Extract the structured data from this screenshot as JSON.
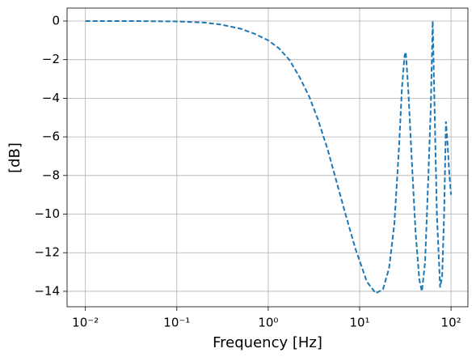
{
  "chart_data": {
    "type": "line",
    "xlabel": "Frequency [Hz]",
    "ylabel": "[dB]",
    "xscale": "log",
    "grid": true,
    "xlim": [
      0.0063,
      153
    ],
    "ylim": [
      -14.8,
      0.67
    ],
    "xticks": [
      {
        "value": 0.01,
        "label": "10⁻²"
      },
      {
        "value": 0.1,
        "label": "10⁻¹"
      },
      {
        "value": 1,
        "label": "10⁰"
      },
      {
        "value": 10,
        "label": "10¹"
      },
      {
        "value": 100,
        "label": "10²"
      }
    ],
    "yticks": [
      0,
      {
        "value": -2,
        "label": "−2"
      },
      {
        "value": -4,
        "label": "−4"
      },
      {
        "value": -6,
        "label": "−6"
      },
      {
        "value": -8,
        "label": "−8"
      },
      {
        "value": -10,
        "label": "−10"
      },
      {
        "value": -12,
        "label": "−12"
      },
      {
        "value": -14,
        "label": "−14"
      }
    ],
    "x": [
      0.01,
      0.03,
      0.1,
      0.2,
      0.3,
      0.5,
      0.7,
      1,
      1.3,
      1.7,
      2.2,
      2.8,
      3.5,
      4.5,
      5.5,
      7,
      9,
      12,
      15,
      18,
      21,
      24,
      27,
      29,
      31,
      32,
      34,
      37,
      41,
      45,
      48,
      52,
      56,
      60,
      63,
      65,
      70,
      76,
      80,
      84,
      88,
      92,
      96,
      100
    ],
    "series": [
      {
        "color": "#1f77b4",
        "linestyle": "dashed",
        "values": [
          0,
          0,
          -0.02,
          -0.08,
          -0.18,
          -0.4,
          -0.65,
          -1.0,
          -1.4,
          -2.0,
          -2.9,
          -3.9,
          -5.1,
          -6.7,
          -8.2,
          -10.0,
          -11.8,
          -13.5,
          -14.1,
          -13.9,
          -12.8,
          -10.5,
          -6.5,
          -3.5,
          -1.8,
          -1.6,
          -3.5,
          -7,
          -11,
          -13.4,
          -14.0,
          -12.5,
          -8.5,
          -4.5,
          0,
          -3,
          -10,
          -13.8,
          -13.2,
          -10,
          -5.2,
          -6.5,
          -8,
          -9
        ]
      }
    ]
  }
}
